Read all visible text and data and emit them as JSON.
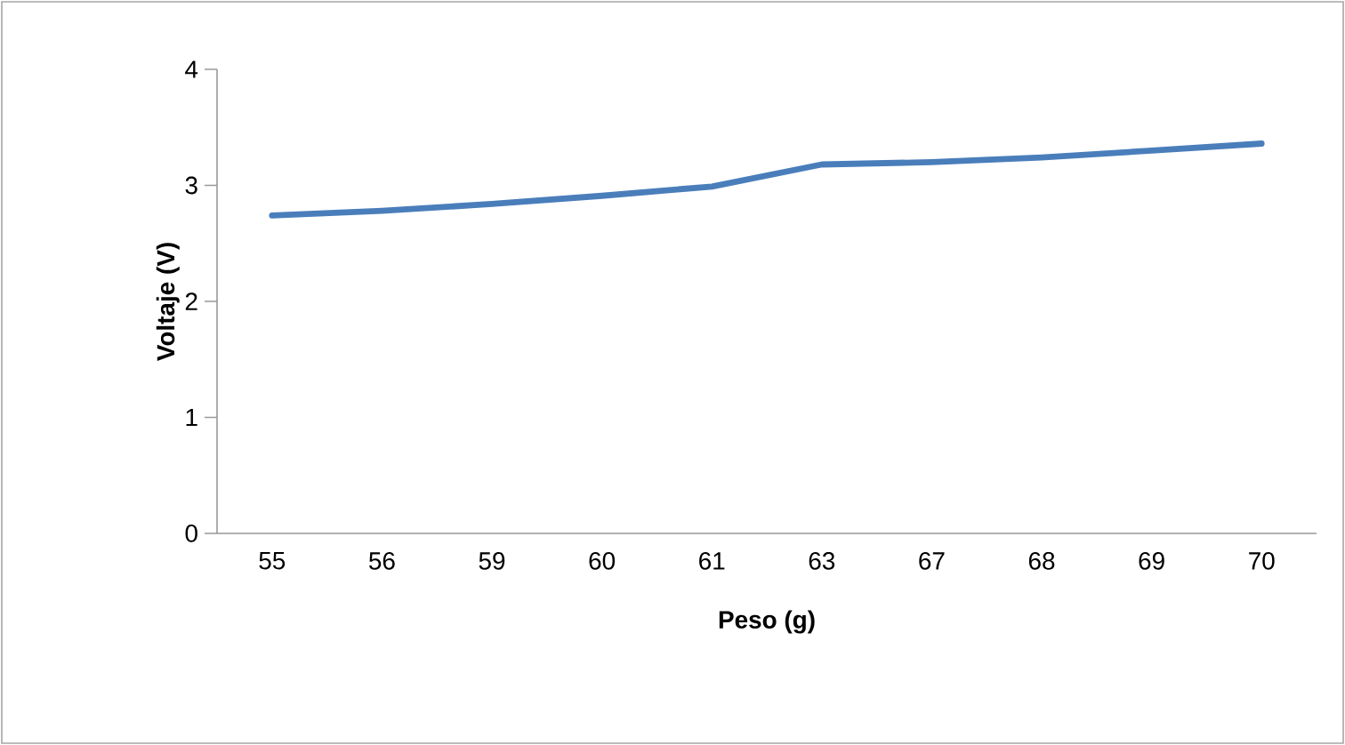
{
  "chart_data": {
    "type": "line",
    "xlabel": "Peso (g)",
    "ylabel": "Voltaje (V)",
    "categories": [
      "55",
      "56",
      "59",
      "60",
      "61",
      "63",
      "67",
      "68",
      "69",
      "70"
    ],
    "series": [
      {
        "color": "#4a7ebb",
        "values": [
          2.74,
          2.78,
          2.84,
          2.91,
          2.99,
          3.18,
          3.2,
          3.24,
          3.3,
          3.36
        ]
      }
    ],
    "ylim": [
      0,
      4
    ],
    "yticks": [
      0,
      1,
      2,
      3,
      4
    ],
    "marker": "none",
    "line_style": "solid"
  }
}
